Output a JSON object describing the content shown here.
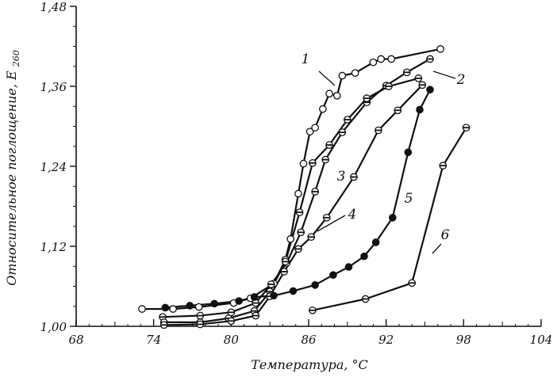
{
  "chart_data": {
    "type": "line",
    "title": "",
    "xlabel": "Температура, °С",
    "ylabel": "Относительное поглощение, E",
    "ylabel_sub": "260",
    "xlim": [
      68,
      104
    ],
    "ylim": [
      1.0,
      1.48
    ],
    "x_ticks": [
      68,
      74,
      80,
      86,
      92,
      98,
      104
    ],
    "x_tick_labels": [
      "68",
      "74",
      "80",
      "86",
      "92",
      "98",
      "104"
    ],
    "y_ticks": [
      1.0,
      1.12,
      1.24,
      1.36,
      1.48
    ],
    "y_tick_labels": [
      "1,00",
      "1,12",
      "1,24",
      "1,36",
      "1,48"
    ],
    "grid": false,
    "legend": "none",
    "series": [
      {
        "name": "1",
        "marker": "open",
        "x": [
          73.1,
          75.5,
          77.5,
          80.2,
          81.5,
          83.3,
          84.2,
          84.6,
          85.2,
          85.6,
          86.1,
          86.5,
          87.1,
          87.6,
          88.2,
          88.6,
          89.6,
          91.0,
          91.6,
          92.4,
          96.2
        ],
        "y": [
          1.026,
          1.026,
          1.029,
          1.035,
          1.042,
          1.064,
          1.1,
          1.131,
          1.199,
          1.244,
          1.292,
          1.298,
          1.326,
          1.349,
          1.346,
          1.376,
          1.38,
          1.396,
          1.401,
          1.401,
          1.416
        ]
      },
      {
        "name": "2",
        "marker": "half",
        "x": [
          74.7,
          77.6,
          80.0,
          81.9,
          83.1,
          84.3,
          85.4,
          86.5,
          87.3,
          88.6,
          90.5,
          92.0,
          93.6,
          95.4
        ],
        "y": [
          1.014,
          1.016,
          1.021,
          1.035,
          1.063,
          1.095,
          1.141,
          1.202,
          1.25,
          1.291,
          1.336,
          1.361,
          1.381,
          1.401
        ]
      },
      {
        "name": "3",
        "marker": "half",
        "x": [
          74.8,
          77.6,
          79.8,
          81.8,
          83.0,
          84.2,
          85.3,
          86.3,
          87.6,
          89.0,
          90.5,
          92.2,
          94.5
        ],
        "y": [
          1.006,
          1.006,
          1.012,
          1.023,
          1.052,
          1.097,
          1.171,
          1.245,
          1.272,
          1.31,
          1.342,
          1.36,
          1.372
        ]
      },
      {
        "name": "4",
        "marker": "half",
        "x": [
          74.8,
          77.6,
          80.0,
          81.9,
          83.0,
          84.1,
          85.2,
          86.2,
          87.4,
          89.5,
          91.4,
          92.9,
          94.8
        ],
        "y": [
          1.002,
          1.003,
          1.008,
          1.016,
          1.045,
          1.082,
          1.116,
          1.134,
          1.163,
          1.224,
          1.294,
          1.324,
          1.362
        ]
      },
      {
        "name": "5",
        "marker": "filled",
        "x": [
          74.9,
          76.8,
          78.7,
          80.6,
          81.8,
          83.3,
          84.8,
          86.5,
          87.9,
          89.1,
          90.3,
          91.2,
          92.5,
          93.7,
          94.6,
          95.4
        ],
        "y": [
          1.028,
          1.031,
          1.034,
          1.038,
          1.044,
          1.046,
          1.053,
          1.062,
          1.077,
          1.089,
          1.105,
          1.126,
          1.163,
          1.261,
          1.325,
          1.355
        ]
      },
      {
        "name": "6",
        "marker": "half",
        "x": [
          86.3,
          90.4,
          94.0,
          96.4,
          98.2
        ],
        "y": [
          1.024,
          1.041,
          1.065,
          1.241,
          1.298
        ]
      }
    ],
    "annotations": [
      {
        "text": "1",
        "series": "1"
      },
      {
        "text": "2",
        "series": "2"
      },
      {
        "text": "3",
        "series": "3"
      },
      {
        "text": "4",
        "series": "4"
      },
      {
        "text": "5",
        "series": "5"
      },
      {
        "text": "6",
        "series": "6"
      }
    ]
  }
}
